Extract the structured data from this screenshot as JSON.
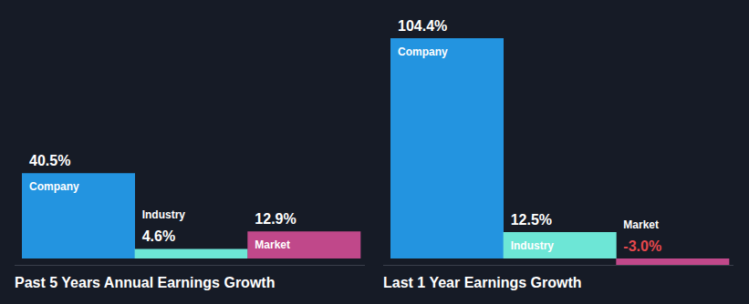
{
  "chart_data": [
    {
      "type": "bar",
      "title": "Past 5 Years Annual Earnings Growth",
      "categories": [
        "Company",
        "Industry",
        "Market"
      ],
      "values": [
        40.5,
        4.6,
        12.9
      ],
      "value_labels": [
        "40.5%",
        "4.6%",
        "12.9%"
      ],
      "colors": [
        "#2394e0",
        "#6de6d6",
        "#c0488a"
      ],
      "data_labels": true,
      "tick_labels": false
    },
    {
      "type": "bar",
      "title": "Last 1 Year Earnings Growth",
      "categories": [
        "Company",
        "Industry",
        "Market"
      ],
      "values": [
        104.4,
        12.5,
        -3.0
      ],
      "value_labels": [
        "104.4%",
        "12.5%",
        "-3.0%"
      ],
      "colors": [
        "#2394e0",
        "#6de6d6",
        "#c0488a"
      ],
      "data_labels": true,
      "tick_labels": false
    }
  ]
}
